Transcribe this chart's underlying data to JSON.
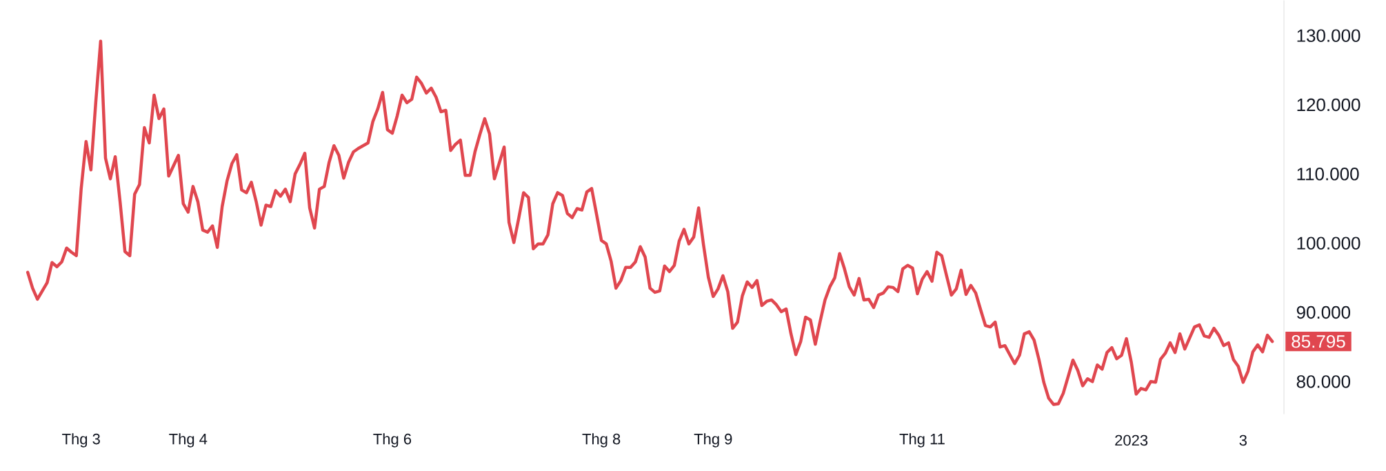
{
  "chart_data": {
    "type": "line",
    "color": "#e0474f",
    "categories": [
      null,
      null,
      null,
      null,
      null,
      null,
      null,
      null,
      null,
      null,
      null,
      "Thg 3",
      null,
      null,
      null,
      null,
      null,
      null,
      null,
      null,
      null,
      null,
      null,
      null,
      null,
      null,
      null,
      null,
      null,
      null,
      null,
      null,
      null,
      "Thg 4",
      null,
      null,
      null,
      null,
      null,
      null,
      null,
      null,
      null,
      null,
      null,
      null,
      null,
      null,
      null,
      null,
      null,
      null,
      null,
      null,
      null,
      null,
      null,
      null,
      null,
      null,
      null,
      null,
      null,
      null,
      null,
      null,
      null,
      null,
      null,
      null,
      null,
      null,
      null,
      null,
      null,
      "Thg 6",
      null,
      null,
      null,
      null,
      null,
      null,
      null,
      null,
      null,
      null,
      null,
      null,
      null,
      null,
      null,
      null,
      null,
      null,
      null,
      null,
      null,
      null,
      null,
      null,
      null,
      null,
      null,
      null,
      null,
      null,
      null,
      null,
      null,
      null,
      null,
      null,
      null,
      null,
      null,
      null,
      null,
      null,
      "Thg 8",
      null,
      null,
      null,
      null,
      null,
      null,
      null,
      null,
      null,
      null,
      null,
      null,
      null,
      null,
      null,
      null,
      null,
      null,
      null,
      null,
      null,
      null,
      "Thg 9",
      null,
      null,
      null,
      null,
      null,
      null,
      null,
      null,
      null,
      null,
      null,
      null,
      null,
      null,
      null,
      null,
      null,
      null,
      null,
      null,
      null,
      null,
      null,
      null,
      null,
      null,
      null,
      null,
      null,
      null,
      null,
      null,
      null,
      null,
      null,
      null,
      null,
      null,
      null,
      null,
      null,
      null,
      "Thg 11",
      null,
      null,
      null,
      null,
      null,
      null,
      null,
      null,
      null,
      null,
      null,
      null,
      null,
      null,
      null,
      null,
      null,
      null,
      null,
      null,
      null,
      null,
      null,
      null,
      null,
      null,
      null,
      null,
      null,
      null,
      null,
      null,
      null,
      null,
      null,
      null,
      null,
      null,
      null,
      null,
      null,
      null,
      "2023",
      null,
      null,
      null,
      null,
      null,
      null,
      null,
      null,
      null,
      null,
      null,
      null,
      null,
      null,
      null,
      null,
      null,
      null,
      null,
      null,
      null,
      null,
      "3",
      null,
      null,
      null,
      null,
      null,
      null
    ],
    "values": [
      95.8,
      93.5,
      91.9,
      93.1,
      94.3,
      97.2,
      96.6,
      97.3,
      99.3,
      98.7,
      98.2,
      107.9,
      114.7,
      110.6,
      120.4,
      129.2,
      112.3,
      109.3,
      112.5,
      106.0,
      98.8,
      98.2,
      107.1,
      108.5,
      116.7,
      114.5,
      121.4,
      118.0,
      119.4,
      109.7,
      111.2,
      112.7,
      105.7,
      104.5,
      108.2,
      106.0,
      101.9,
      101.6,
      102.5,
      99.4,
      105.3,
      109.0,
      111.5,
      112.8,
      107.7,
      107.3,
      108.8,
      106.0,
      102.6,
      105.5,
      105.3,
      107.6,
      106.8,
      107.8,
      106.0,
      110.0,
      111.4,
      113.0,
      105.1,
      102.2,
      107.8,
      108.2,
      111.7,
      114.1,
      112.7,
      109.4,
      111.7,
      113.2,
      113.7,
      114.1,
      114.5,
      117.6,
      119.4,
      121.8,
      116.4,
      115.9,
      118.4,
      121.4,
      120.3,
      120.8,
      124.0,
      123.1,
      121.7,
      122.4,
      121.1,
      119.0,
      119.2,
      113.4,
      114.3,
      114.9,
      109.8,
      109.8,
      113.2,
      115.7,
      118.0,
      115.8,
      109.3,
      111.6,
      113.9,
      103.0,
      100.1,
      103.6,
      107.3,
      106.6,
      99.2,
      99.9,
      99.9,
      101.2,
      105.7,
      107.3,
      106.9,
      104.3,
      103.7,
      105.0,
      104.8,
      107.4,
      107.9,
      104.2,
      100.4,
      99.9,
      97.4,
      93.5,
      94.6,
      96.5,
      96.5,
      97.3,
      99.5,
      98.0,
      93.5,
      92.9,
      93.1,
      96.7,
      95.9,
      96.8,
      100.3,
      102.0,
      99.9,
      100.9,
      105.1,
      99.8,
      95.1,
      92.3,
      93.4,
      95.3,
      93.0,
      87.7,
      88.6,
      92.4,
      94.4,
      93.6,
      94.6,
      91.0,
      91.6,
      91.8,
      91.1,
      90.1,
      90.5,
      86.9,
      83.9,
      85.8,
      89.3,
      88.9,
      85.4,
      88.7,
      91.8,
      93.7,
      95.0,
      98.5,
      96.3,
      93.7,
      92.5,
      94.9,
      91.8,
      91.9,
      90.7,
      92.5,
      92.8,
      93.7,
      93.6,
      93.0,
      96.3,
      96.8,
      96.4,
      92.7,
      94.8,
      95.9,
      94.5,
      98.7,
      98.2,
      95.3,
      92.5,
      93.4,
      96.1,
      92.6,
      93.9,
      92.8,
      90.4,
      88.1,
      87.9,
      88.6,
      85.0,
      85.2,
      83.9,
      82.6,
      83.8,
      86.9,
      87.2,
      86.0,
      83.2,
      79.9,
      77.6,
      76.7,
      76.8,
      78.3,
      80.7,
      83.1,
      81.6,
      79.4,
      80.4,
      80.0,
      82.4,
      81.8,
      84.2,
      84.9,
      83.3,
      83.8,
      86.2,
      82.8,
      78.2,
      79.0,
      78.8,
      80.0,
      79.9,
      83.2,
      84.1,
      85.6,
      84.2,
      86.9,
      84.7,
      86.3,
      87.9,
      88.2,
      86.6,
      86.4,
      87.7,
      86.7,
      85.2,
      85.6,
      83.2,
      82.2,
      79.9,
      81.5,
      84.3,
      85.3,
      84.3,
      86.7,
      85.8
    ],
    "ylim": [
      75.3,
      135.1
    ],
    "yticks": [
      {
        "value": 80,
        "label": "80.000"
      },
      {
        "value": 90,
        "label": "90.000"
      },
      {
        "value": 100,
        "label": "100.000"
      },
      {
        "value": 110,
        "label": "110.000"
      },
      {
        "value": 120,
        "label": "120.000"
      },
      {
        "value": 130,
        "label": "130.000"
      }
    ],
    "annotations": [
      "85.795"
    ]
  }
}
